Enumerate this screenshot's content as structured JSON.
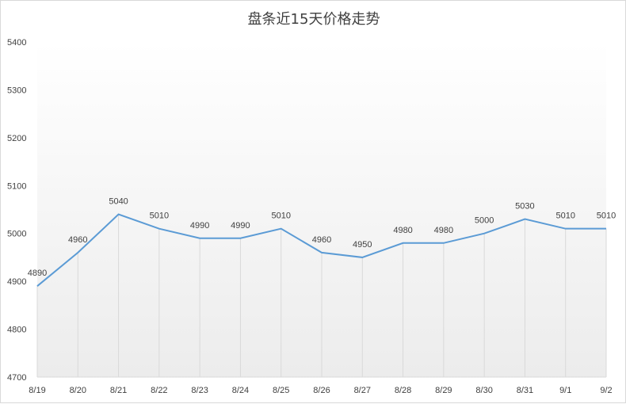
{
  "chart_data": {
    "type": "line",
    "title": "盘条近15天价格走势",
    "xlabel": "",
    "ylabel": "",
    "categories": [
      "8/19",
      "8/20",
      "8/21",
      "8/22",
      "8/23",
      "8/24",
      "8/25",
      "8/26",
      "8/27",
      "8/28",
      "8/29",
      "8/30",
      "8/31",
      "9/1",
      "9/2"
    ],
    "series": [
      {
        "values": [
          4890,
          4960,
          5040,
          5010,
          4990,
          4990,
          5010,
          4960,
          4950,
          4980,
          4980,
          5000,
          5030,
          5010,
          5010
        ]
      }
    ],
    "ylim": [
      4700,
      5400
    ],
    "yticks": [
      4700,
      4800,
      4900,
      5000,
      5100,
      5200,
      5300,
      5400
    ],
    "line_color": "#5b9bd5",
    "grid": "vertical lines at categories",
    "legend": "none",
    "data_labels": true
  }
}
